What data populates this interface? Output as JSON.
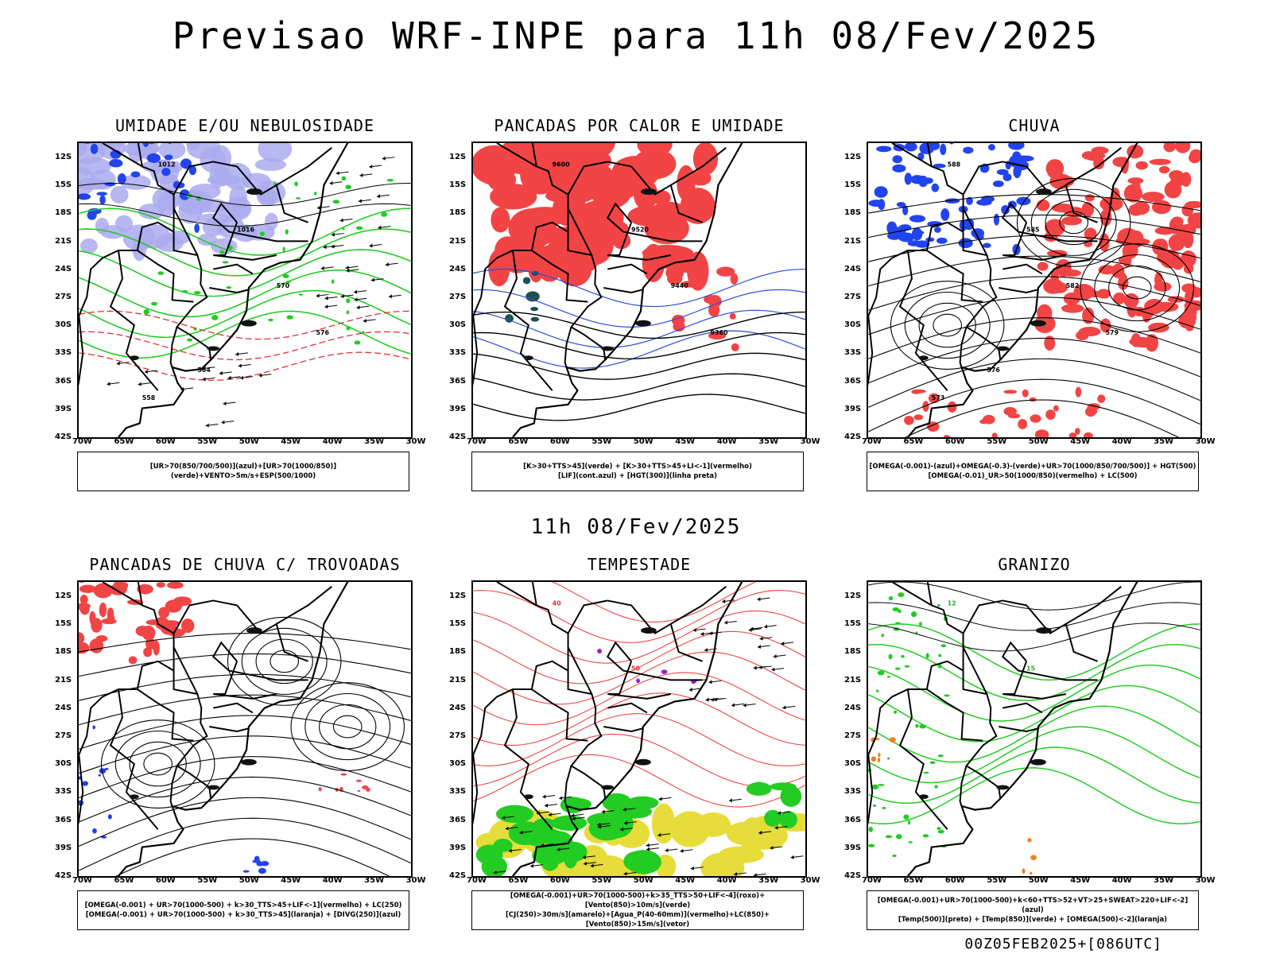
{
  "header": {
    "title": "Previsao WRF-INPE  para 11h 08/Fev/2025"
  },
  "middle": {
    "subtitle": "11h 08/Fev/2025"
  },
  "footer": {
    "run": "00Z05FEB2025+[086UTC]"
  },
  "axes": {
    "lat_labels": [
      "12S",
      "15S",
      "18S",
      "21S",
      "24S",
      "27S",
      "30S",
      "33S",
      "36S",
      "39S",
      "42S"
    ],
    "lon_labels": [
      "70W",
      "65W",
      "60W",
      "55W",
      "50W",
      "45W",
      "40W",
      "35W",
      "30W"
    ]
  },
  "panels": [
    {
      "title": "UMIDADE E/OU NEBULOSIDADE",
      "legend": [
        "[UR>70(850/700/500)](azul)+[UR>70(1000/850)](verde)+VENTO>5m/s+ESP(500/1000)"
      ],
      "contour_labels": [
        "1012",
        "1016",
        "570",
        "576",
        "564",
        "558"
      ]
    },
    {
      "title": "PANCADAS POR CALOR E UMIDADE",
      "legend": [
        "[K>30+TTS>45](verde) + [K>30+TTS>45+LI<-1](vermelho)",
        "[LIF](cont.azul) + [HGT(300)](linha preta)"
      ],
      "contour_labels": [
        "9600",
        "9520",
        "9440",
        "9360"
      ]
    },
    {
      "title": "CHUVA",
      "legend": [
        "[OMEGA(-0.001)-(azul)+OMEGA(-0.3)-(verde)+UR>70(1000/850/700/500)] + HGT(500)",
        "[OMEGA(-0.01)_UR>50(1000/850)(vermelho) + LC(500)"
      ],
      "contour_labels": [
        "588",
        "585",
        "582",
        "579",
        "576",
        "573"
      ]
    },
    {
      "title": "PANCADAS DE CHUVA C/ TROVOADAS",
      "legend": [
        "[OMEGA(-0.001) + UR>70(1000-500) + k>30_TTS>45+LIF<-1](vermelho) + LC(250)",
        "[OMEGA(-0.001) + UR>70(1000-500) + k>30_TTS>45](laranja) + [DIVG(250)](azul)"
      ],
      "contour_labels": []
    },
    {
      "title": "TEMPESTADE",
      "legend": [
        "[OMEGA(-0.001)+UR>70(1000-500)+k>35_TTS>50+LIF<-4](roxo)+[Vento(850)>10m/s](verde)",
        "[CJ(250)>30m/s](amarelo)+[Agua_P(40-60mm)](vermelho)+LC(850)+[Vento(850)>15m/s](vetor)"
      ],
      "contour_labels": [
        "40",
        "50"
      ]
    },
    {
      "title": "GRANIZO",
      "legend": [
        "[OMEGA(-0.001)+UR>70(1000-500)+k<60+TTS>52+VT>25+SWEAT>220+LIF<-2](azul)",
        "[Temp(500)](preto) + [Temp(850)](verde) + [OMEGA(500)<-2](laranja)"
      ],
      "contour_labels": [
        "12",
        "15"
      ]
    }
  ],
  "colors": {
    "blue": "#2244ee",
    "lavender": "#aaaaee",
    "green": "#22cc22",
    "red": "#f24444",
    "darkteal": "#1f4f4f",
    "yellow": "#e6dc3a",
    "orange": "#f08020",
    "purple": "#a020c0"
  }
}
